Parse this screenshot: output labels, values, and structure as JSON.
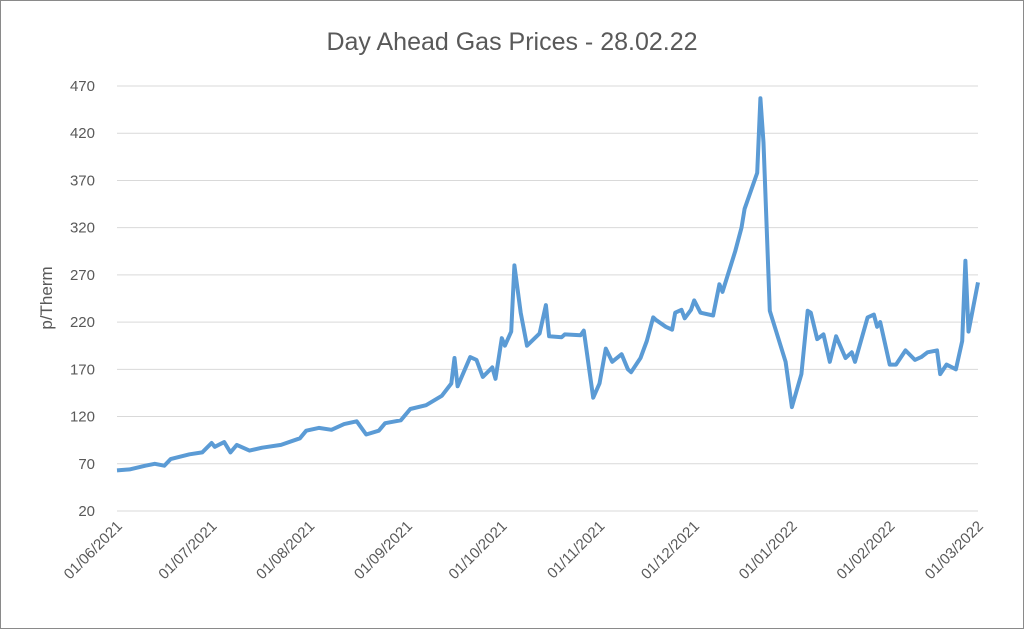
{
  "chart_data": {
    "type": "line",
    "title": "Day Ahead Gas Prices - 28.02.22",
    "y_label": "p/Therm",
    "x": [
      "01/06/2021",
      "05/06/2021",
      "10/06/2021",
      "13/06/2021",
      "16/06/2021",
      "18/06/2021",
      "24/06/2021",
      "28/06/2021",
      "01/07/2021",
      "02/07/2021",
      "05/07/2021",
      "07/07/2021",
      "09/07/2021",
      "13/07/2021",
      "17/07/2021",
      "23/07/2021",
      "29/07/2021",
      "31/07/2021",
      "04/08/2021",
      "08/08/2021",
      "12/08/2021",
      "16/08/2021",
      "19/08/2021",
      "23/08/2021",
      "25/08/2021",
      "30/08/2021",
      "02/09/2021",
      "07/09/2021",
      "12/09/2021",
      "15/09/2021",
      "16/09/2021",
      "17/09/2021",
      "21/09/2021",
      "23/09/2021",
      "25/09/2021",
      "28/09/2021",
      "29/09/2021",
      "01/10/2021",
      "02/10/2021",
      "04/10/2021",
      "05/10/2021",
      "07/10/2021",
      "09/10/2021",
      "13/10/2021",
      "15/10/2021",
      "16/10/2021",
      "20/10/2021",
      "21/10/2021",
      "26/10/2021",
      "27/10/2021",
      "30/10/2021",
      "01/11/2021",
      "03/11/2021",
      "05/11/2021",
      "08/11/2021",
      "10/11/2021",
      "11/11/2021",
      "14/11/2021",
      "16/11/2021",
      "18/11/2021",
      "19/11/2021",
      "22/11/2021",
      "24/11/2021",
      "25/11/2021",
      "27/11/2021",
      "28/11/2021",
      "30/11/2021",
      "01/12/2021",
      "03/12/2021",
      "07/12/2021",
      "09/12/2021",
      "10/12/2021",
      "14/12/2021",
      "16/12/2021",
      "17/12/2021",
      "21/12/2021",
      "22/12/2021",
      "23/12/2021",
      "25/12/2021",
      "30/12/2021",
      "01/01/2022",
      "04/01/2022",
      "06/01/2022",
      "07/01/2022",
      "09/01/2022",
      "11/01/2022",
      "13/01/2022",
      "15/01/2022",
      "18/01/2022",
      "20/01/2022",
      "21/01/2022",
      "25/01/2022",
      "27/01/2022",
      "28/01/2022",
      "29/01/2022",
      "01/02/2022",
      "03/02/2022",
      "06/02/2022",
      "09/02/2022",
      "11/02/2022",
      "13/02/2022",
      "16/02/2022",
      "17/02/2022",
      "19/02/2022",
      "22/02/2022",
      "24/02/2022",
      "25/02/2022",
      "26/02/2022",
      "01/03/2022"
    ],
    "series": [
      {
        "name": "Day Ahead",
        "color": "#5b9bd5",
        "values": [
          63,
          64,
          68,
          70,
          68,
          75,
          80,
          82,
          92,
          88,
          93,
          82,
          90,
          84,
          87,
          90,
          97,
          105,
          108,
          106,
          112,
          115,
          101,
          105,
          113,
          116,
          128,
          132,
          142,
          155,
          182,
          152,
          183,
          180,
          162,
          172,
          160,
          203,
          195,
          210,
          280,
          230,
          195,
          208,
          238,
          205,
          204,
          207,
          206,
          211,
          140,
          155,
          192,
          178,
          186,
          170,
          167,
          182,
          200,
          225,
          222,
          215,
          212,
          230,
          233,
          224,
          233,
          243,
          230,
          227,
          260,
          252,
          295,
          320,
          340,
          378,
          457,
          410,
          232,
          178,
          130,
          165,
          232,
          230,
          202,
          207,
          178,
          205,
          182,
          188,
          178,
          225,
          228,
          215,
          220,
          175,
          175,
          190,
          180,
          183,
          188,
          190,
          165,
          175,
          170,
          200,
          285,
          210,
          262
        ]
      }
    ],
    "xlim": [
      "01/06/2021",
      "01/03/2022"
    ],
    "xticks": [
      "01/06/2021",
      "01/07/2021",
      "01/08/2021",
      "01/09/2021",
      "01/10/2021",
      "01/11/2021",
      "01/12/2021",
      "01/01/2022",
      "01/02/2022",
      "01/03/2022"
    ],
    "ylim": [
      20,
      470
    ],
    "yticks": [
      20,
      70,
      120,
      170,
      220,
      270,
      320,
      370,
      420,
      470
    ],
    "grid": true
  }
}
